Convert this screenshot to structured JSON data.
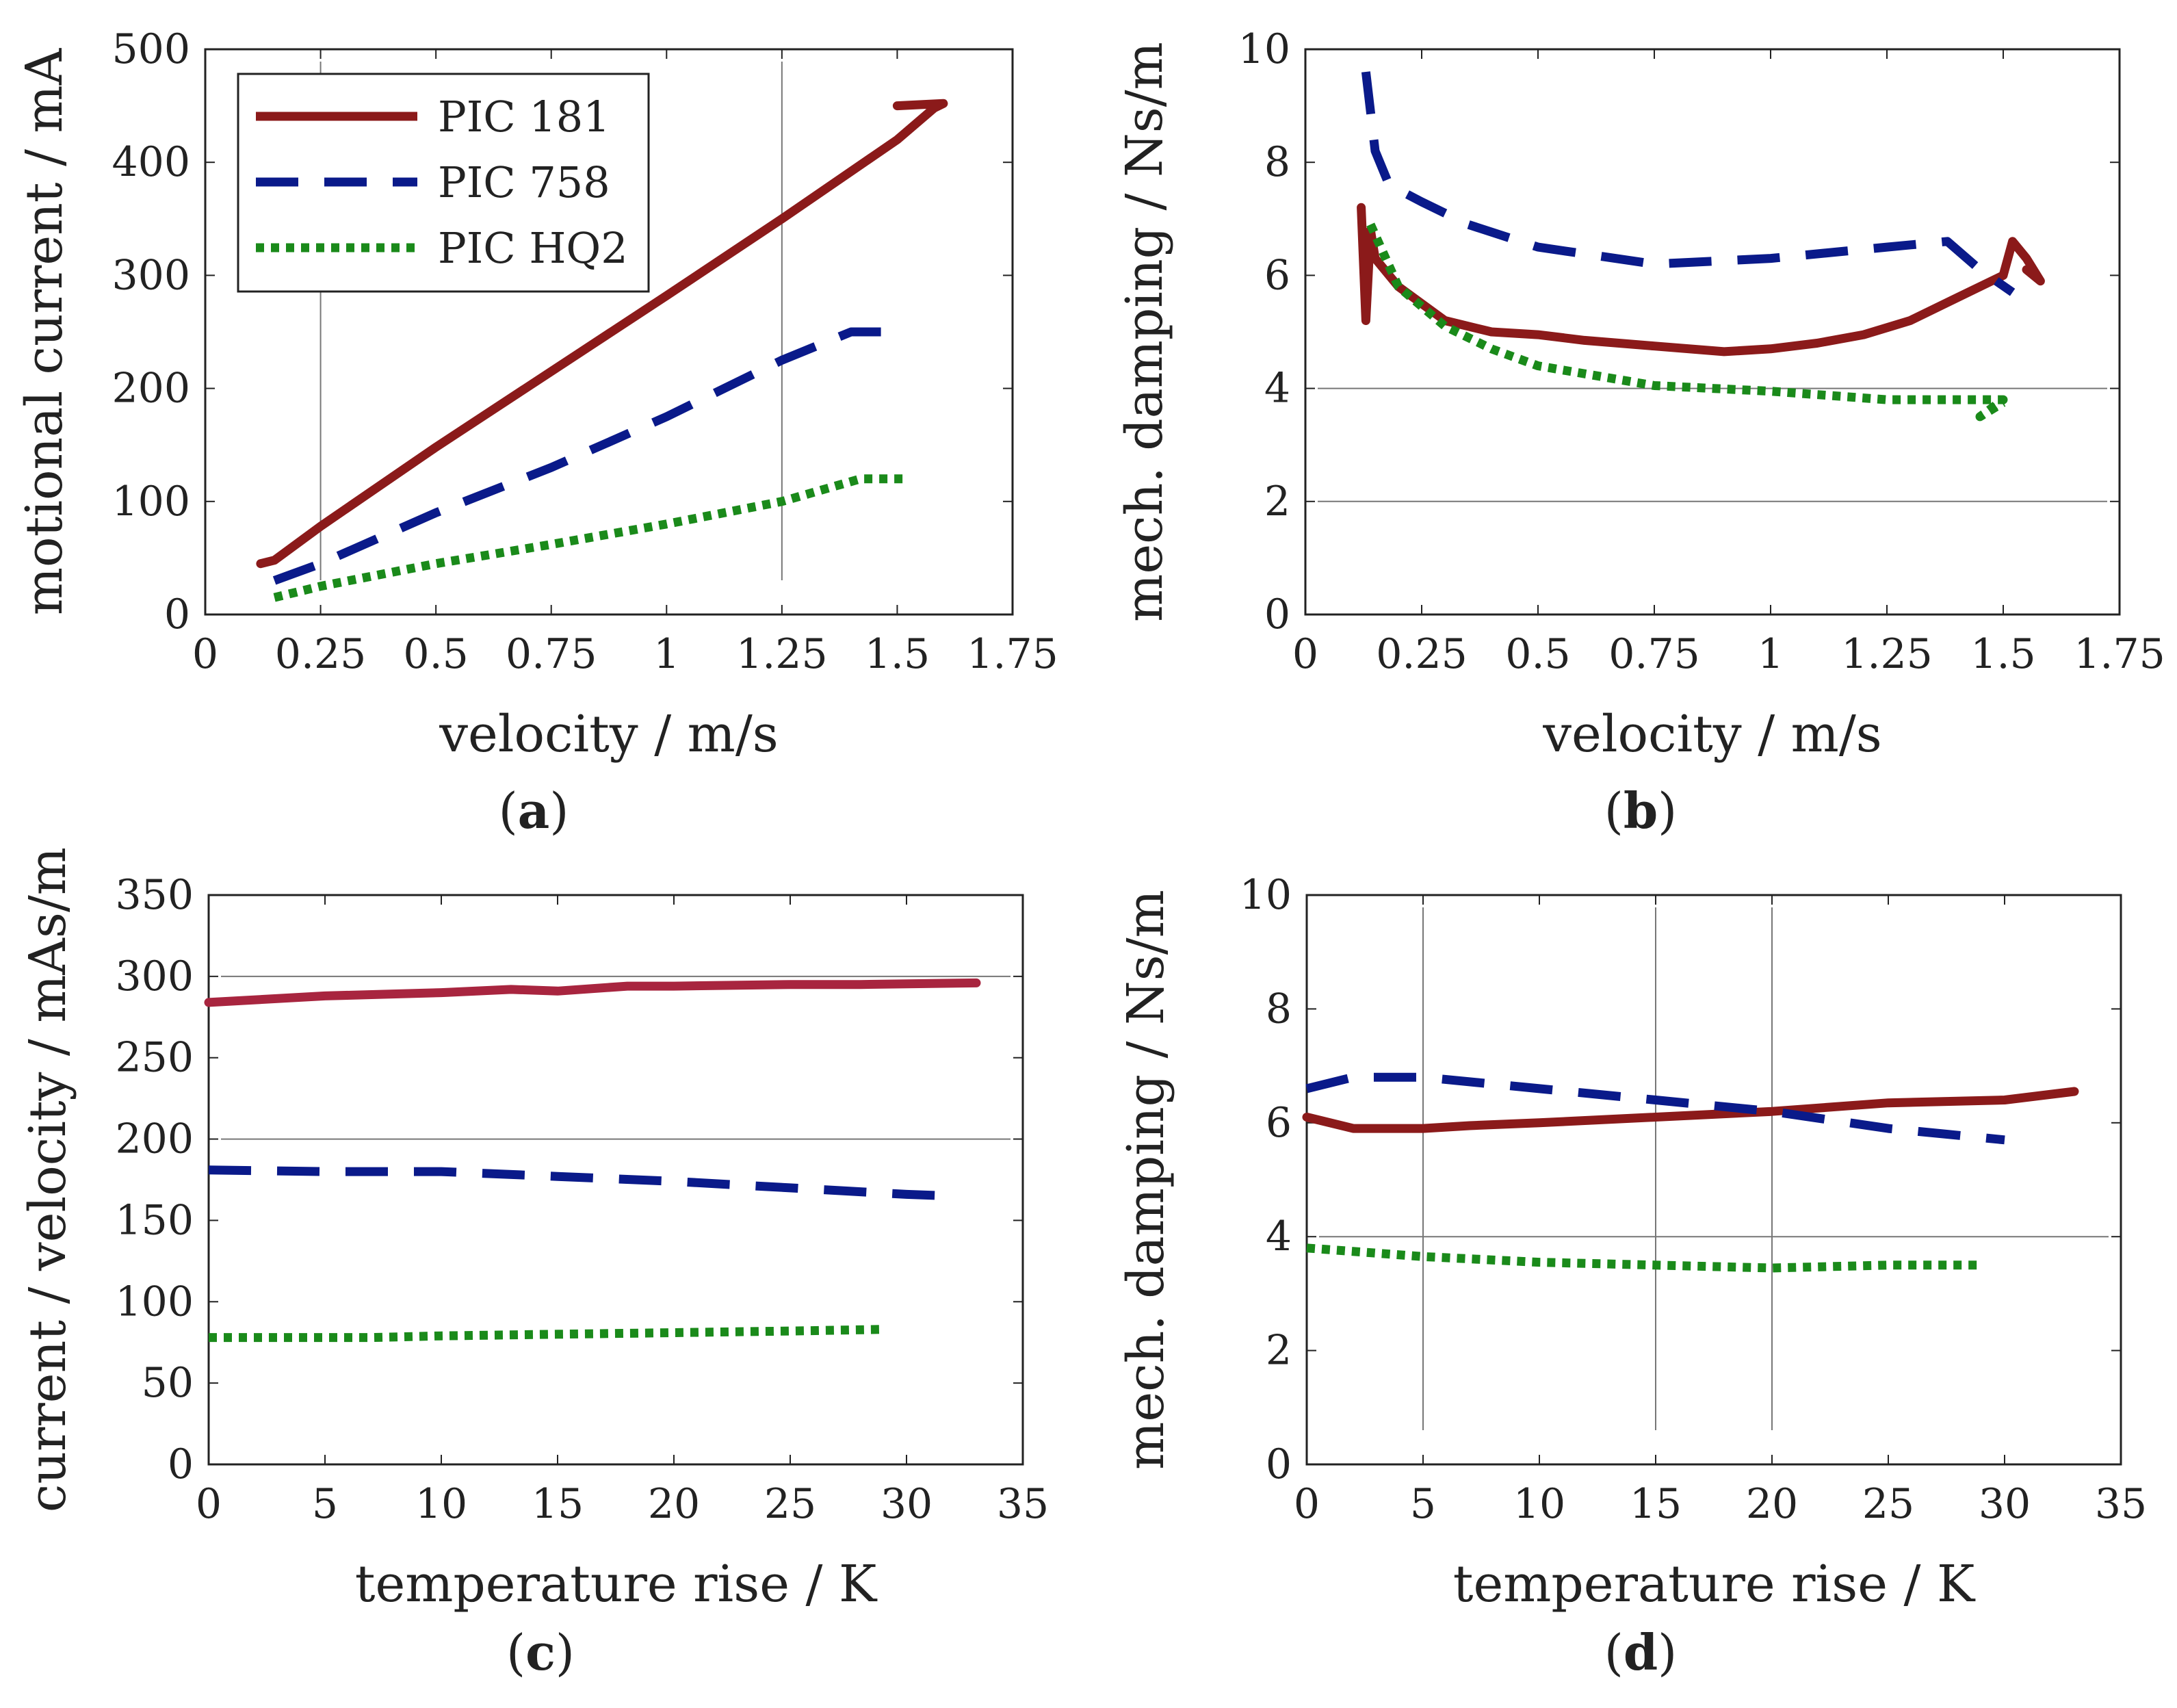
{
  "legend": [
    {
      "name": "PIC 181",
      "color": "#8b1a1a",
      "style": "solid"
    },
    {
      "name": "PIC 758",
      "color": "#0a1a8a",
      "style": "dashed"
    },
    {
      "name": "PIC HQ2",
      "color": "#1a8a1a",
      "style": "dotted"
    }
  ],
  "chart_data": [
    {
      "id": "a",
      "panel_label": "a",
      "type": "line",
      "xlabel": "velocity / m/s",
      "ylabel": "motional current / mA",
      "xlim": [
        0,
        1.75
      ],
      "ylim": [
        0,
        500
      ],
      "xticks": [
        0,
        0.25,
        0.5,
        0.75,
        1,
        1.25,
        1.5,
        1.75
      ],
      "xtick_labels": [
        "0",
        "0.25",
        "0.5",
        "0.75",
        "1",
        "1.25",
        "1.5",
        "1.75"
      ],
      "yticks": [
        0,
        100,
        200,
        300,
        400,
        500
      ],
      "ytick_labels": [
        "0",
        "100",
        "200",
        "300",
        "400",
        "500"
      ],
      "grid": {
        "x": [
          0.25,
          1.25
        ],
        "y": []
      },
      "legend_loc": "top-left",
      "series": [
        {
          "name": "PIC 181",
          "color": "#8b1a1a",
          "style": "solid",
          "color_key": "PIC 181",
          "x": [
            0.12,
            0.15,
            0.25,
            0.5,
            0.75,
            1.0,
            1.25,
            1.5,
            1.58,
            1.6,
            1.5
          ],
          "y": [
            45,
            48,
            78,
            148,
            215,
            282,
            350,
            420,
            448,
            452,
            450
          ]
        },
        {
          "name": "PIC 758",
          "color": "#0a1a8a",
          "style": "dashed",
          "color_key": "PIC 758",
          "x": [
            0.15,
            0.25,
            0.5,
            0.75,
            1.0,
            1.25,
            1.4,
            1.52
          ],
          "y": [
            30,
            45,
            90,
            130,
            175,
            225,
            250,
            250
          ]
        },
        {
          "name": "PIC HQ2",
          "color": "#1a8a1a",
          "style": "dotted",
          "color_key": "PIC HQ2",
          "x": [
            0.15,
            0.25,
            0.5,
            0.75,
            1.0,
            1.25,
            1.42,
            1.52
          ],
          "y": [
            15,
            25,
            45,
            62,
            80,
            100,
            120,
            120
          ]
        }
      ]
    },
    {
      "id": "b",
      "panel_label": "b",
      "type": "line",
      "xlabel": "velocity / m/s",
      "ylabel": "mech. damping / Ns/m",
      "xlim": [
        0,
        1.75
      ],
      "ylim": [
        0,
        10
      ],
      "xticks": [
        0,
        0.25,
        0.5,
        0.75,
        1,
        1.25,
        1.5,
        1.75
      ],
      "xtick_labels": [
        "0",
        "0.25",
        "0.5",
        "0.75",
        "1",
        "1.25",
        "1.5",
        "1.75"
      ],
      "yticks": [
        0,
        2,
        4,
        6,
        8,
        10
      ],
      "ytick_labels": [
        "0",
        "2",
        "4",
        "6",
        "8",
        "10"
      ],
      "grid": {
        "x": [],
        "y": [
          2,
          4
        ]
      },
      "series": [
        {
          "name": "PIC 181",
          "color": "#8b1a1a",
          "style": "solid",
          "color_key": "PIC 181",
          "x": [
            0.12,
            0.13,
            0.14,
            0.15,
            0.2,
            0.3,
            0.4,
            0.5,
            0.6,
            0.75,
            0.9,
            1.0,
            1.1,
            1.2,
            1.3,
            1.4,
            1.5,
            1.52,
            1.55,
            1.58,
            1.55
          ],
          "y": [
            7.2,
            5.2,
            6.8,
            6.3,
            5.8,
            5.2,
            5.0,
            4.95,
            4.85,
            4.75,
            4.65,
            4.7,
            4.8,
            4.95,
            5.2,
            5.6,
            6.0,
            6.6,
            6.3,
            5.9,
            6.1
          ]
        },
        {
          "name": "PIC 758",
          "color": "#0a1a8a",
          "style": "dashed",
          "color_key": "PIC 758",
          "x": [
            0.13,
            0.15,
            0.18,
            0.25,
            0.35,
            0.5,
            0.75,
            1.0,
            1.25,
            1.38,
            1.45,
            1.52
          ],
          "y": [
            9.6,
            8.2,
            7.6,
            7.3,
            6.9,
            6.5,
            6.2,
            6.3,
            6.5,
            6.6,
            6.1,
            5.7
          ]
        },
        {
          "name": "PIC HQ2",
          "color": "#1a8a1a",
          "style": "dotted",
          "color_key": "PIC HQ2",
          "x": [
            0.14,
            0.2,
            0.3,
            0.4,
            0.5,
            0.75,
            1.0,
            1.25,
            1.4,
            1.5,
            1.45,
            1.5
          ],
          "y": [
            6.9,
            5.8,
            5.1,
            4.7,
            4.4,
            4.05,
            3.95,
            3.8,
            3.8,
            3.8,
            3.5,
            3.75
          ]
        }
      ]
    },
    {
      "id": "c",
      "panel_label": "c",
      "type": "line",
      "xlabel": "temperature rise / K",
      "ylabel": "current / velocity / mAs/m",
      "xlim": [
        0,
        35
      ],
      "ylim": [
        0,
        350
      ],
      "xticks": [
        0,
        5,
        10,
        15,
        20,
        25,
        30,
        35
      ],
      "xtick_labels": [
        "0",
        "5",
        "10",
        "15",
        "20",
        "25",
        "30",
        "35"
      ],
      "yticks": [
        0,
        50,
        100,
        150,
        200,
        250,
        300,
        350
      ],
      "ytick_labels": [
        "0",
        "50",
        "100",
        "150",
        "200",
        "250",
        "300",
        "350"
      ],
      "grid": {
        "x": [],
        "y": [
          200,
          300
        ]
      },
      "series": [
        {
          "name": "PIC 181",
          "color": "#a8253f",
          "style": "solid",
          "color_key": "PIC 181",
          "x": [
            0,
            5,
            10,
            13,
            15,
            18,
            20,
            25,
            28,
            33
          ],
          "y": [
            284,
            288,
            290,
            292,
            291,
            294,
            294,
            295,
            295,
            296
          ]
        },
        {
          "name": "PIC 758",
          "color": "#0a1a8a",
          "style": "dashed",
          "color_key": "PIC 758",
          "x": [
            0,
            5,
            10,
            15,
            20,
            25,
            30,
            32
          ],
          "y": [
            181,
            180,
            180,
            177,
            174,
            170,
            166,
            165
          ]
        },
        {
          "name": "PIC HQ2",
          "color": "#1a8a1a",
          "style": "dotted",
          "color_key": "PIC HQ2",
          "x": [
            0,
            7,
            10,
            15,
            20,
            25,
            29
          ],
          "y": [
            78,
            78,
            79,
            80,
            81,
            82,
            83
          ]
        }
      ]
    },
    {
      "id": "d",
      "panel_label": "d",
      "type": "line",
      "xlabel": "temperature rise / K",
      "ylabel": "mech. damping / Ns/m",
      "xlim": [
        0,
        35
      ],
      "ylim": [
        0,
        10
      ],
      "xticks": [
        0,
        5,
        10,
        15,
        20,
        25,
        30,
        35
      ],
      "xtick_labels": [
        "0",
        "5",
        "10",
        "15",
        "20",
        "25",
        "30",
        "35"
      ],
      "yticks": [
        0,
        2,
        4,
        6,
        8,
        10
      ],
      "ytick_labels": [
        "0",
        "2",
        "4",
        "6",
        "8",
        "10"
      ],
      "grid": {
        "x": [
          5,
          15,
          20
        ],
        "y": [
          4
        ]
      },
      "series": [
        {
          "name": "PIC 181",
          "color": "#8b1a1a",
          "style": "solid",
          "color_key": "PIC 181",
          "x": [
            0,
            2,
            5,
            7,
            10,
            15,
            20,
            25,
            30,
            33
          ],
          "y": [
            6.1,
            5.9,
            5.9,
            5.95,
            6.0,
            6.1,
            6.2,
            6.35,
            6.4,
            6.55
          ]
        },
        {
          "name": "PIC 758",
          "color": "#0a1a8a",
          "style": "dashed",
          "color_key": "PIC 758",
          "x": [
            0,
            2,
            5,
            10,
            15,
            20,
            25,
            30
          ],
          "y": [
            6.6,
            6.8,
            6.8,
            6.6,
            6.4,
            6.2,
            5.9,
            5.7
          ]
        },
        {
          "name": "PIC HQ2",
          "color": "#1a8a1a",
          "style": "dotted",
          "color_key": "PIC HQ2",
          "x": [
            0,
            5,
            10,
            15,
            20,
            25,
            29
          ],
          "y": [
            3.8,
            3.65,
            3.55,
            3.5,
            3.45,
            3.5,
            3.5
          ]
        }
      ]
    }
  ]
}
